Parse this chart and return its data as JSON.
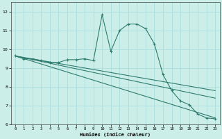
{
  "xlabel": "Humidex (Indice chaleur)",
  "bg_color": "#cceee8",
  "grid_color": "#aadddd",
  "line_color": "#2e7b6e",
  "xlim": [
    -0.5,
    23.5
  ],
  "ylim": [
    6,
    12.5
  ],
  "xticks": [
    0,
    1,
    2,
    3,
    4,
    5,
    6,
    7,
    8,
    9,
    10,
    11,
    12,
    13,
    14,
    15,
    16,
    17,
    18,
    19,
    20,
    21,
    22,
    23
  ],
  "yticks": [
    6,
    7,
    8,
    9,
    10,
    11,
    12
  ],
  "curve1_x": [
    0,
    1,
    2,
    3,
    4,
    5,
    6,
    7,
    8,
    9,
    10,
    11,
    12,
    13,
    14,
    15,
    16,
    17,
    18,
    19,
    20,
    21,
    22,
    23
  ],
  "curve1_y": [
    9.65,
    9.5,
    9.5,
    9.4,
    9.3,
    9.3,
    9.45,
    9.45,
    9.5,
    9.4,
    11.85,
    9.9,
    11.0,
    11.35,
    11.35,
    11.1,
    10.3,
    8.65,
    7.8,
    7.25,
    7.05,
    6.55,
    6.35,
    6.3
  ],
  "curve2_x": [
    0,
    23
  ],
  "curve2_y": [
    9.65,
    7.8
  ],
  "curve3_x": [
    0,
    23
  ],
  "curve3_y": [
    9.65,
    7.4
  ],
  "curve4_x": [
    0,
    23
  ],
  "curve4_y": [
    9.65,
    6.35
  ],
  "marker": "+"
}
